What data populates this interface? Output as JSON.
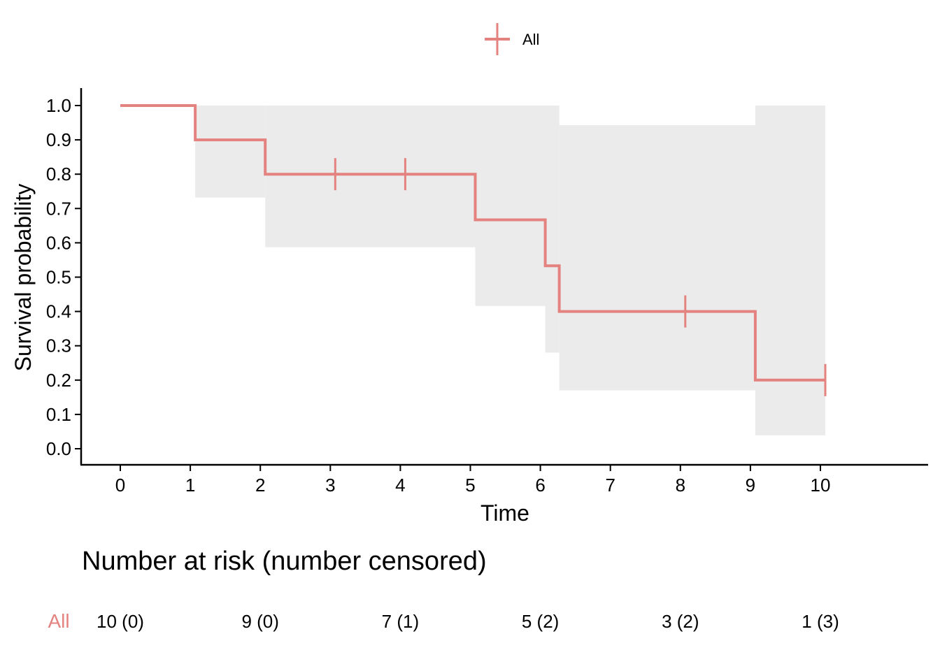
{
  "chart_data": {
    "type": "line",
    "subtype": "kaplan-meier",
    "xlabel": "Time",
    "ylabel": "Survival probability",
    "xlim": [
      0,
      11.4
    ],
    "ylim": [
      0,
      1.0
    ],
    "x_ticks": [
      0,
      1,
      2,
      3,
      4,
      5,
      6,
      7,
      8,
      9,
      10
    ],
    "y_ticks": [
      "0.0",
      "0.1",
      "0.2",
      "0.3",
      "0.4",
      "0.5",
      "0.6",
      "0.7",
      "0.8",
      "0.9",
      "1.0"
    ],
    "grid": false,
    "legend": {
      "position": "top",
      "entries": [
        "All"
      ]
    },
    "colors": {
      "series": "#e3827f",
      "ci": "#ebebeb"
    },
    "series": [
      {
        "name": "All",
        "steps": [
          {
            "x": 0,
            "y": 1.0,
            "lower": 1.0,
            "upper": 1.0
          },
          {
            "x": 1.07,
            "y": 0.9,
            "lower": 0.732,
            "upper": 1.0
          },
          {
            "x": 2.07,
            "y": 0.8,
            "lower": 0.587,
            "upper": 1.0
          },
          {
            "x": 5.07,
            "y": 0.667,
            "lower": 0.416,
            "upper": 1.0
          },
          {
            "x": 6.07,
            "y": 0.533,
            "lower": 0.28,
            "upper": 1.0
          },
          {
            "x": 6.27,
            "y": 0.4,
            "lower": 0.17,
            "upper": 0.943
          },
          {
            "x": 9.07,
            "y": 0.2,
            "lower": 0.039,
            "upper": 1.0
          }
        ],
        "end_x": 10.07,
        "censored": [
          {
            "x": 3.07,
            "y": 0.8
          },
          {
            "x": 4.07,
            "y": 0.8
          },
          {
            "x": 8.07,
            "y": 0.4
          },
          {
            "x": 10.07,
            "y": 0.2
          }
        ]
      }
    ]
  },
  "risk_table": {
    "title": "Number at risk (number censored)",
    "group": "All",
    "times": [
      0,
      2,
      4,
      6,
      8,
      10
    ],
    "values": [
      "10 (0)",
      "9 (0)",
      "7 (1)",
      "5 (2)",
      "3 (2)",
      "1 (3)"
    ]
  }
}
